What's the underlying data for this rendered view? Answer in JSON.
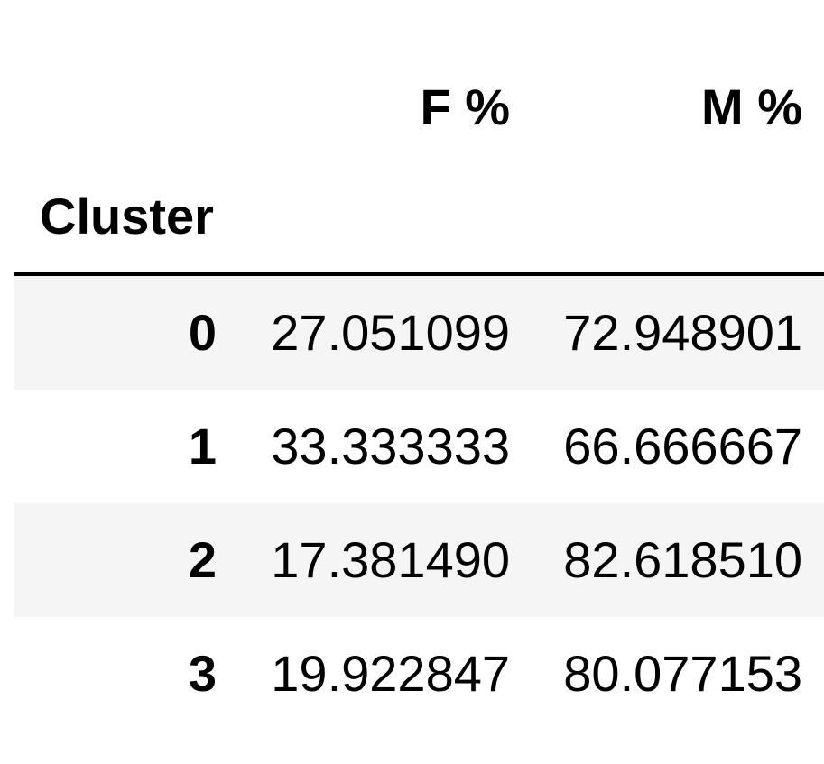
{
  "table": {
    "columns": [
      "F %",
      "M %"
    ],
    "index_name": "Cluster",
    "rows": [
      {
        "index": "0",
        "values": [
          "27.051099",
          "72.948901"
        ]
      },
      {
        "index": "1",
        "values": [
          "33.333333",
          "66.666667"
        ]
      },
      {
        "index": "2",
        "values": [
          "17.381490",
          "82.618510"
        ]
      },
      {
        "index": "3",
        "values": [
          "19.922847",
          "80.077153"
        ]
      }
    ],
    "stripe_color": "#f5f5f5",
    "text_color": "#000000"
  }
}
